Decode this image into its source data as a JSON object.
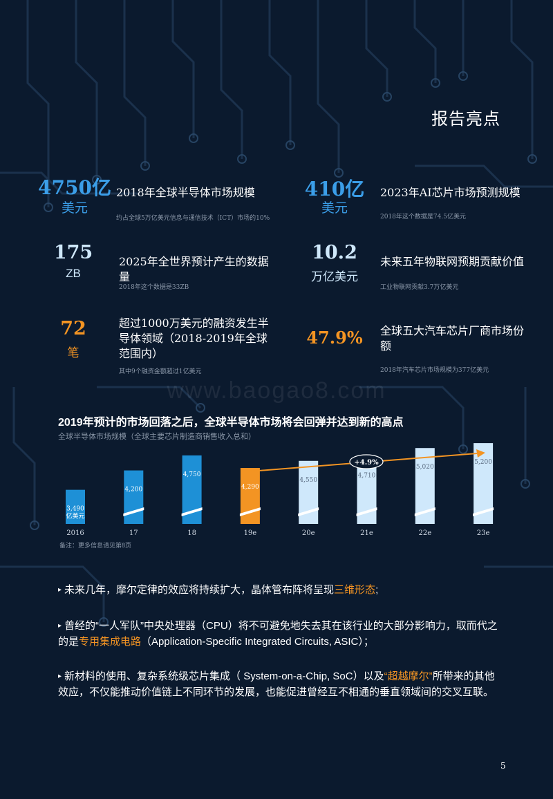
{
  "header": {
    "title": "报告亮点"
  },
  "stats": [
    {
      "value": "4750亿",
      "unit": "美元",
      "title": "2018年全球半导体市场规模",
      "note": "约占全球5万亿美元信息与通信技术（ICT）市场的10%"
    },
    {
      "value": "410亿",
      "unit": "美元",
      "title": "2023年AI芯片市场预测规模",
      "note": "2018年这个数据是74.5亿美元"
    },
    {
      "value": "175",
      "unit": "ZB",
      "title": "2025年全世界预计产生的数据量",
      "note": "2018年这个数据是33ZB"
    },
    {
      "value": "10.2",
      "unit": "万亿美元",
      "title": "未来五年物联网预期贡献价值",
      "note": "工业物联网贡献3.7万亿美元"
    },
    {
      "value": "72",
      "unit": "笔",
      "title": "超过1000万美元的融资发生半导体领域（2018-2019年全球范围内）",
      "note": "其中9个融资金额超过1亿美元"
    },
    {
      "value": "47.9%",
      "unit": "",
      "title": "全球五大汽车芯片厂商市场份额",
      "note": "2018年汽车芯片市场规模为377亿美元"
    }
  ],
  "watermark": "www.baogao8.com",
  "chart_data": {
    "type": "bar",
    "title": "2019年预计的市场回落之后，全球半导体市场将会回弹并达到新的高点",
    "subtitle": "全球半导体市场规模（全球主要芯片制造商销售收入总和）",
    "categories": [
      "2016",
      "17",
      "18",
      "19e",
      "20e",
      "21e",
      "22e",
      "23e"
    ],
    "values": [
      3490,
      4200,
      4750,
      4290,
      4550,
      4710,
      5020,
      5200
    ],
    "value_labels": [
      "3,490",
      "4,200",
      "4,750",
      "4,290",
      "4,550",
      "4,710",
      "5,020",
      "5,200"
    ],
    "first_unit": "亿美元",
    "growth_label": "+4.9%",
    "axis_break": true,
    "note": "备注：更多信息请见第8页",
    "colors": {
      "actual": "#1e90d6",
      "estimate_current": "#f39423",
      "forecast": "#cfe8fb",
      "arrow": "#f39423"
    }
  },
  "bullets": [
    {
      "pre": "未来几年，摩尔定律的效应将持续扩大，晶体管布阵将呈现",
      "hl": "三维形态",
      "post": ";"
    },
    {
      "pre": "曾经的“一人军队”中央处理器（CPU）将不可避免地失去其在该行业的大部分影响力，取而代之的是",
      "hl": "专用集成电路",
      "post": "（Application-Specific Integrated Circuits, ASIC）；"
    },
    {
      "pre": "新材料的使用、复杂系统级芯片集成（ System-on-a-Chip, SoC）以及",
      "hl": "“超越摩尔”",
      "post": "所带来的其他效应，不仅能推动价值链上不同环节的发展，也能促进曾经互不相通的垂直领域间的交叉互联。"
    }
  ],
  "page_number": "5"
}
